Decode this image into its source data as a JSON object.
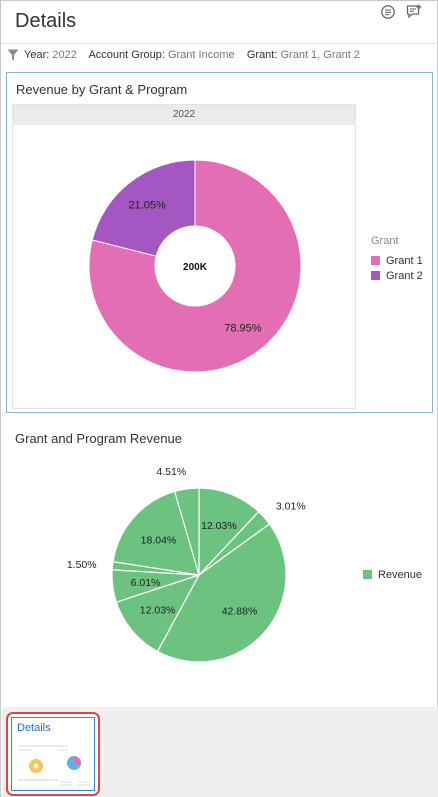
{
  "header": {
    "title": "Details",
    "icons": [
      "comment-icon",
      "add-comment-icon"
    ]
  },
  "filters": {
    "year_label": "Year:",
    "year_value": "2022",
    "account_group_label": "Account Group:",
    "account_group_value": "Grant Income",
    "grant_label": "Grant:",
    "grant_value": "Grant 1, Grant 2"
  },
  "chart_data": [
    {
      "type": "pie",
      "title": "Revenue by Grant & Program",
      "facet": "2022",
      "center_label": "200K",
      "legend_title": "Grant",
      "legend_position": "right",
      "slices": [
        {
          "name": "Grant 1",
          "value": 78.95,
          "label": "78.95%",
          "color": "#e46eb4"
        },
        {
          "name": "Grant 2",
          "value": 21.05,
          "label": "21.05%",
          "color": "#a456c1"
        }
      ]
    },
    {
      "type": "pie",
      "title": "Grant and Program Revenue",
      "legend_position": "right",
      "series_name": "Revenue",
      "color": "#6cc27f",
      "slices": [
        {
          "value": 12.03,
          "label": "12.03%"
        },
        {
          "value": 3.01,
          "label": "3.01%"
        },
        {
          "value": 42.88,
          "label": "42.88%"
        },
        {
          "value": 12.03,
          "label": "12.03%"
        },
        {
          "value": 6.01,
          "label": "6.01%"
        },
        {
          "value": 1.5,
          "label": "1.50%"
        },
        {
          "value": 18.04,
          "label": "18.04%"
        },
        {
          "value": 4.51,
          "label": "4.51%"
        }
      ]
    }
  ],
  "thumbnail": {
    "title": "Details"
  }
}
